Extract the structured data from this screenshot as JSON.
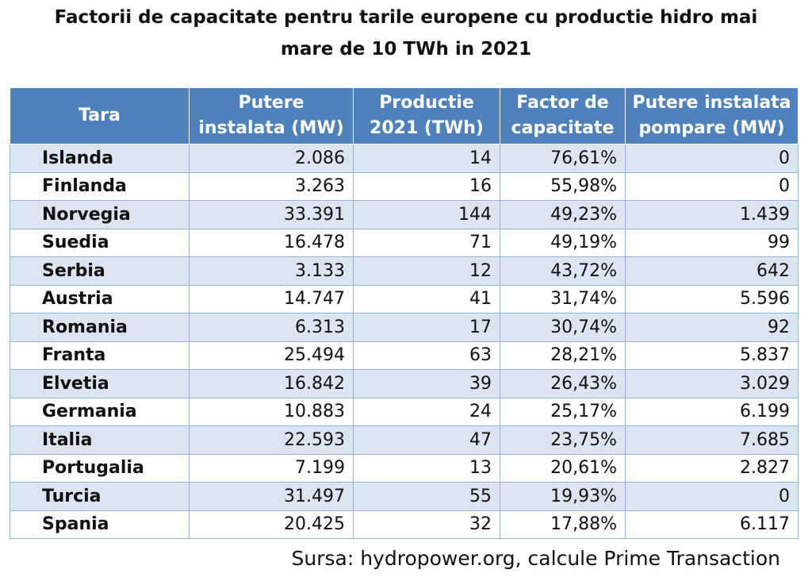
{
  "title": {
    "line1": "Factorii de capacitate pentru tarile europene cu productie hidro mai",
    "line2": "mare de 10 TWh in 2021"
  },
  "table": {
    "headers": [
      {
        "line1": "Tara",
        "line2": ""
      },
      {
        "line1": "Putere",
        "line2": "instalata (MW)"
      },
      {
        "line1": "Productie",
        "line2": "2021 (TWh)"
      },
      {
        "line1": "Factor de",
        "line2": "capacitate"
      },
      {
        "line1": "Putere instalata",
        "line2": "pompare (MW)"
      }
    ],
    "rows": [
      [
        "Islanda",
        "2.086",
        "14",
        "76,61%",
        "0"
      ],
      [
        "Finlanda",
        "3.263",
        "16",
        "55,98%",
        "0"
      ],
      [
        "Norvegia",
        "33.391",
        "144",
        "49,23%",
        "1.439"
      ],
      [
        "Suedia",
        "16.478",
        "71",
        "49,19%",
        "99"
      ],
      [
        "Serbia",
        "3.133",
        "12",
        "43,72%",
        "642"
      ],
      [
        "Austria",
        "14.747",
        "41",
        "31,74%",
        "5.596"
      ],
      [
        "Romania",
        "6.313",
        "17",
        "30,74%",
        "92"
      ],
      [
        "Franta",
        "25.494",
        "63",
        "28,21%",
        "5.837"
      ],
      [
        "Elvetia",
        "16.842",
        "39",
        "26,43%",
        "3.029"
      ],
      [
        "Germania",
        "10.883",
        "24",
        "25,17%",
        "6.199"
      ],
      [
        "Italia",
        "22.593",
        "47",
        "23,75%",
        "7.685"
      ],
      [
        "Portugalia",
        "7.199",
        "13",
        "20,61%",
        "2.827"
      ],
      [
        "Turcia",
        "31.497",
        "55",
        "19,93%",
        "0"
      ],
      [
        "Spania",
        "20.425",
        "32",
        "17,88%",
        "6.117"
      ]
    ]
  },
  "source": "Sursa: hydropower.org, calcule Prime Transaction",
  "colors": {
    "header_bg": "#4f81bd",
    "row_band": "#dbe5f1",
    "border": "#95b3d7"
  }
}
